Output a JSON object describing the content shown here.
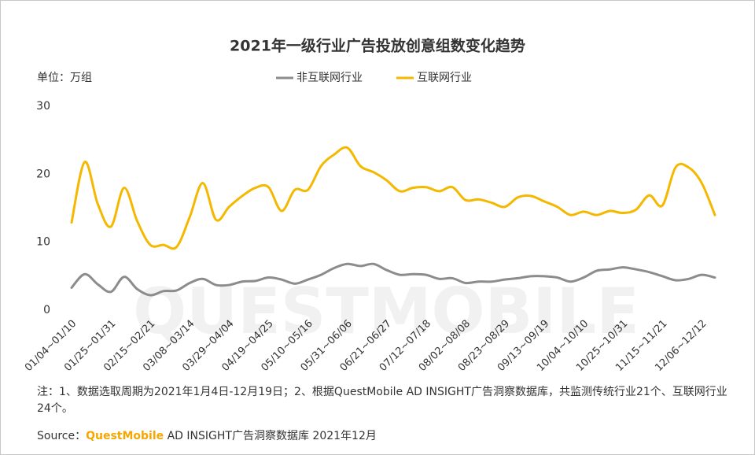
{
  "chart_data": {
    "type": "line",
    "title": "2021年一级行业广告投放创意组数变化趋势",
    "unit_label": "单位：万组",
    "watermark": "QUESTMOBILE",
    "categories": [
      "01/04~01/10",
      null,
      null,
      "01/25~01/31",
      null,
      null,
      "02/15~02/21",
      null,
      null,
      "03/08~03/14",
      null,
      null,
      "03/29~04/04",
      null,
      null,
      "04/19~04/25",
      null,
      null,
      "05/10~05/16",
      null,
      null,
      "05/31~06/06",
      null,
      null,
      "06/21~06/27",
      null,
      null,
      "07/12~07/18",
      null,
      null,
      "08/02~08/08",
      null,
      null,
      "08/23~08/29",
      null,
      null,
      "09/13~09/19",
      null,
      null,
      "10/04~10/10",
      null,
      null,
      "10/25~10/31",
      null,
      null,
      "11/15~11/21",
      null,
      null,
      "12/06~12/12",
      null
    ],
    "series": [
      {
        "name": "非互联网行业",
        "color": "#8c8c8c",
        "values": [
          3.3,
          5.3,
          3.8,
          2.7,
          4.9,
          3.1,
          2.2,
          2.8,
          2.9,
          4.0,
          4.6,
          3.7,
          3.7,
          4.2,
          4.3,
          4.8,
          4.5,
          3.9,
          4.5,
          5.2,
          6.2,
          6.8,
          6.5,
          6.8,
          5.9,
          5.2,
          5.3,
          5.2,
          4.6,
          4.7,
          4.0,
          4.2,
          4.2,
          4.5,
          4.7,
          5.0,
          5.0,
          4.8,
          4.2,
          4.8,
          5.8,
          6.0,
          6.3,
          6.0,
          5.6,
          5.0,
          4.4,
          4.6,
          5.2,
          4.8
        ]
      },
      {
        "name": "互联网行业",
        "color": "#f5b800",
        "values": [
          12.9,
          21.8,
          15.6,
          12.3,
          18.0,
          13.1,
          9.6,
          9.6,
          9.3,
          13.7,
          18.7,
          13.3,
          15.2,
          16.8,
          18.0,
          18.1,
          14.6,
          17.7,
          17.7,
          21.2,
          22.9,
          23.9,
          21.2,
          20.3,
          19.1,
          17.5,
          18.0,
          18.1,
          17.5,
          18.1,
          16.2,
          16.3,
          15.8,
          15.2,
          16.6,
          16.8,
          16.0,
          15.2,
          14.0,
          14.5,
          14.0,
          14.6,
          14.3,
          14.8,
          16.9,
          15.4,
          21.0,
          21.0,
          18.7,
          14.0
        ]
      }
    ],
    "ylim": [
      0,
      30
    ],
    "yticks": [
      0,
      10,
      20,
      30
    ],
    "grid": false,
    "legend": "top",
    "note": "注：1、数据选取周期为2021年1月4日-12月19日；2、根据QuestMobile AD INSIGHT广告洞察数据库，共监测传统行业21个、互联网行业24个。",
    "source": {
      "label": "Source：",
      "brand": "QuestMobile",
      "rest": " AD INSIGHT广告洞察数据库 2021年12月"
    }
  }
}
